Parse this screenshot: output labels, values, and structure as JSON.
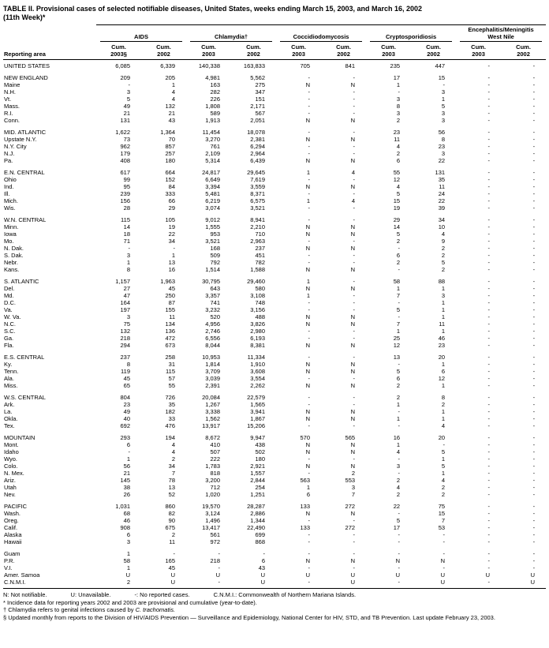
{
  "colors": {
    "background": "#ffffff",
    "text": "#000000",
    "rule": "#000000"
  },
  "title": {
    "line1": "TABLE II. Provisional cases of selected notifiable diseases, United States, weeks ending March 15, 2003, and March 16, 2002",
    "line2": "(11th Week)*"
  },
  "table": {
    "row_header": "Reporting area",
    "column_groups": [
      {
        "label": "AIDS"
      },
      {
        "label": "Chlamydia†"
      },
      {
        "label": "Coccidiodomycosis"
      },
      {
        "label": "Cryptosporidiosis"
      },
      {
        "label": "Encephalitis/Meningitis\nWest Nile"
      }
    ],
    "columns": [
      "Cum.\n2003§",
      "Cum.\n2002",
      "Cum.\n2003",
      "Cum.\n2002",
      "Cum.\n2003",
      "Cum.\n2002",
      "Cum.\n2003",
      "Cum.\n2002",
      "Cum.\n2003",
      "Cum.\n2002"
    ],
    "rows": [
      {
        "area": "UNITED STATES",
        "level": "total",
        "values": [
          "6,085",
          "6,339",
          "140,338",
          "163,833",
          "705",
          "841",
          "235",
          "447",
          "-",
          "-"
        ]
      },
      {
        "area": "NEW ENGLAND",
        "level": "region",
        "section_start": true,
        "values": [
          "209",
          "205",
          "4,981",
          "5,562",
          "-",
          "-",
          "17",
          "15",
          "-",
          "-"
        ]
      },
      {
        "area": "Maine",
        "values": [
          "-",
          "1",
          "163",
          "275",
          "N",
          "N",
          "1",
          "-",
          "-",
          "-"
        ]
      },
      {
        "area": "N.H.",
        "values": [
          "3",
          "4",
          "282",
          "347",
          "-",
          "-",
          "-",
          "3",
          "-",
          "-"
        ]
      },
      {
        "area": "Vt.",
        "values": [
          "5",
          "4",
          "226",
          "151",
          "-",
          "-",
          "3",
          "1",
          "-",
          "-"
        ]
      },
      {
        "area": "Mass.",
        "values": [
          "49",
          "132",
          "1,808",
          "2,171",
          "-",
          "-",
          "8",
          "5",
          "-",
          "-"
        ]
      },
      {
        "area": "R.I.",
        "values": [
          "21",
          "21",
          "589",
          "567",
          "-",
          "-",
          "3",
          "3",
          "-",
          "-"
        ]
      },
      {
        "area": "Conn.",
        "values": [
          "131",
          "43",
          "1,913",
          "2,051",
          "N",
          "N",
          "2",
          "3",
          "-",
          "-"
        ]
      },
      {
        "area": "MID. ATLANTIC",
        "level": "region",
        "section_start": true,
        "values": [
          "1,622",
          "1,364",
          "11,454",
          "18,078",
          "-",
          "-",
          "23",
          "56",
          "-",
          "-"
        ]
      },
      {
        "area": "Upstate N.Y.",
        "values": [
          "73",
          "70",
          "3,270",
          "2,381",
          "N",
          "N",
          "11",
          "8",
          "-",
          "-"
        ]
      },
      {
        "area": "N.Y. City",
        "values": [
          "962",
          "857",
          "761",
          "6,294",
          "-",
          "-",
          "4",
          "23",
          "-",
          "-"
        ]
      },
      {
        "area": "N.J.",
        "values": [
          "179",
          "257",
          "2,109",
          "2,964",
          "-",
          "-",
          "2",
          "3",
          "-",
          "-"
        ]
      },
      {
        "area": "Pa.",
        "values": [
          "408",
          "180",
          "5,314",
          "6,439",
          "N",
          "N",
          "6",
          "22",
          "-",
          "-"
        ]
      },
      {
        "area": "E.N. CENTRAL",
        "level": "region",
        "section_start": true,
        "values": [
          "617",
          "664",
          "24,817",
          "29,645",
          "1",
          "4",
          "55",
          "131",
          "-",
          "-"
        ]
      },
      {
        "area": "Ohio",
        "values": [
          "99",
          "152",
          "6,649",
          "7,619",
          "-",
          "-",
          "12",
          "35",
          "-",
          "-"
        ]
      },
      {
        "area": "Ind.",
        "values": [
          "95",
          "84",
          "3,394",
          "3,559",
          "N",
          "N",
          "4",
          "11",
          "-",
          "-"
        ]
      },
      {
        "area": "Ill.",
        "values": [
          "239",
          "333",
          "5,481",
          "8,371",
          "-",
          "-",
          "5",
          "24",
          "-",
          "-"
        ]
      },
      {
        "area": "Mich.",
        "values": [
          "156",
          "66",
          "6,219",
          "6,575",
          "1",
          "4",
          "15",
          "22",
          "-",
          "-"
        ]
      },
      {
        "area": "Wis.",
        "values": [
          "28",
          "29",
          "3,074",
          "3,521",
          "-",
          "-",
          "19",
          "39",
          "-",
          "-"
        ]
      },
      {
        "area": "W.N. CENTRAL",
        "level": "region",
        "section_start": true,
        "values": [
          "115",
          "105",
          "9,012",
          "8,941",
          "-",
          "-",
          "29",
          "34",
          "-",
          "-"
        ]
      },
      {
        "area": "Minn.",
        "values": [
          "14",
          "19",
          "1,555",
          "2,210",
          "N",
          "N",
          "14",
          "10",
          "-",
          "-"
        ]
      },
      {
        "area": "Iowa",
        "values": [
          "18",
          "22",
          "953",
          "710",
          "N",
          "N",
          "5",
          "4",
          "-",
          "-"
        ]
      },
      {
        "area": "Mo.",
        "values": [
          "71",
          "34",
          "3,521",
          "2,963",
          "-",
          "-",
          "2",
          "9",
          "-",
          "-"
        ]
      },
      {
        "area": "N. Dak.",
        "values": [
          "-",
          "-",
          "168",
          "237",
          "N",
          "N",
          "-",
          "2",
          "-",
          "-"
        ]
      },
      {
        "area": "S. Dak.",
        "values": [
          "3",
          "1",
          "509",
          "451",
          "-",
          "-",
          "6",
          "2",
          "-",
          "-"
        ]
      },
      {
        "area": "Nebr.",
        "values": [
          "1",
          "13",
          "792",
          "782",
          "-",
          "-",
          "2",
          "5",
          "-",
          "-"
        ]
      },
      {
        "area": "Kans.",
        "values": [
          "8",
          "16",
          "1,514",
          "1,588",
          "N",
          "N",
          "-",
          "2",
          "-",
          "-"
        ]
      },
      {
        "area": "S. ATLANTIC",
        "level": "region",
        "section_start": true,
        "values": [
          "1,157",
          "1,963",
          "30,795",
          "29,460",
          "1",
          "-",
          "58",
          "88",
          "-",
          "-"
        ]
      },
      {
        "area": "Del.",
        "values": [
          "27",
          "45",
          "643",
          "580",
          "N",
          "N",
          "1",
          "1",
          "-",
          "-"
        ]
      },
      {
        "area": "Md.",
        "values": [
          "47",
          "250",
          "3,357",
          "3,108",
          "1",
          "-",
          "7",
          "3",
          "-",
          "-"
        ]
      },
      {
        "area": "D.C.",
        "values": [
          "164",
          "87",
          "741",
          "748",
          "-",
          "-",
          "-",
          "1",
          "-",
          "-"
        ]
      },
      {
        "area": "Va.",
        "values": [
          "197",
          "155",
          "3,232",
          "3,156",
          "-",
          "-",
          "5",
          "1",
          "-",
          "-"
        ]
      },
      {
        "area": "W. Va.",
        "values": [
          "3",
          "11",
          "520",
          "488",
          "N",
          "N",
          "-",
          "1",
          "-",
          "-"
        ]
      },
      {
        "area": "N.C.",
        "values": [
          "75",
          "134",
          "4,956",
          "3,826",
          "N",
          "N",
          "7",
          "11",
          "-",
          "-"
        ]
      },
      {
        "area": "S.C.",
        "values": [
          "132",
          "136",
          "2,746",
          "2,980",
          "-",
          "-",
          "1",
          "1",
          "-",
          "-"
        ]
      },
      {
        "area": "Ga.",
        "values": [
          "218",
          "472",
          "6,556",
          "6,193",
          "-",
          "-",
          "25",
          "46",
          "-",
          "-"
        ]
      },
      {
        "area": "Fla.",
        "values": [
          "294",
          "673",
          "8,044",
          "8,381",
          "N",
          "N",
          "12",
          "23",
          "-",
          "-"
        ]
      },
      {
        "area": "E.S. CENTRAL",
        "level": "region",
        "section_start": true,
        "values": [
          "237",
          "258",
          "10,953",
          "11,334",
          "-",
          "-",
          "13",
          "20",
          "-",
          "-"
        ]
      },
      {
        "area": "Ky.",
        "values": [
          "8",
          "31",
          "1,814",
          "1,910",
          "N",
          "N",
          "-",
          "1",
          "-",
          "-"
        ]
      },
      {
        "area": "Tenn.",
        "values": [
          "119",
          "115",
          "3,709",
          "3,608",
          "N",
          "N",
          "5",
          "6",
          "-",
          "-"
        ]
      },
      {
        "area": "Ala.",
        "values": [
          "45",
          "57",
          "3,039",
          "3,554",
          "-",
          "-",
          "6",
          "12",
          "-",
          "-"
        ]
      },
      {
        "area": "Miss.",
        "values": [
          "65",
          "55",
          "2,391",
          "2,262",
          "N",
          "N",
          "2",
          "1",
          "-",
          "-"
        ]
      },
      {
        "area": "W.S. CENTRAL",
        "level": "region",
        "section_start": true,
        "values": [
          "804",
          "726",
          "20,084",
          "22,579",
          "-",
          "-",
          "2",
          "8",
          "-",
          "-"
        ]
      },
      {
        "area": "Ark.",
        "values": [
          "23",
          "35",
          "1,267",
          "1,565",
          "-",
          "-",
          "1",
          "2",
          "-",
          "-"
        ]
      },
      {
        "area": "La.",
        "values": [
          "49",
          "182",
          "3,338",
          "3,941",
          "N",
          "N",
          "-",
          "1",
          "-",
          "-"
        ]
      },
      {
        "area": "Okla.",
        "values": [
          "40",
          "33",
          "1,562",
          "1,867",
          "N",
          "N",
          "1",
          "1",
          "-",
          "-"
        ]
      },
      {
        "area": "Tex.",
        "values": [
          "692",
          "476",
          "13,917",
          "15,206",
          "-",
          "-",
          "-",
          "4",
          "-",
          "-"
        ]
      },
      {
        "area": "MOUNTAIN",
        "level": "region",
        "section_start": true,
        "values": [
          "293",
          "194",
          "8,672",
          "9,947",
          "570",
          "565",
          "16",
          "20",
          "-",
          "-"
        ]
      },
      {
        "area": "Mont.",
        "values": [
          "6",
          "4",
          "410",
          "438",
          "N",
          "N",
          "1",
          "-",
          "-",
          "-"
        ]
      },
      {
        "area": "Idaho",
        "values": [
          "-",
          "4",
          "507",
          "502",
          "N",
          "N",
          "4",
          "5",
          "-",
          "-"
        ]
      },
      {
        "area": "Wyo.",
        "values": [
          "1",
          "2",
          "222",
          "180",
          "-",
          "-",
          "-",
          "1",
          "-",
          "-"
        ]
      },
      {
        "area": "Colo.",
        "values": [
          "56",
          "34",
          "1,783",
          "2,921",
          "N",
          "N",
          "3",
          "5",
          "-",
          "-"
        ]
      },
      {
        "area": "N. Mex.",
        "values": [
          "21",
          "7",
          "818",
          "1,557",
          "-",
          "2",
          "-",
          "1",
          "-",
          "-"
        ]
      },
      {
        "area": "Ariz.",
        "values": [
          "145",
          "78",
          "3,200",
          "2,844",
          "563",
          "553",
          "2",
          "4",
          "-",
          "-"
        ]
      },
      {
        "area": "Utah",
        "values": [
          "38",
          "13",
          "712",
          "254",
          "1",
          "3",
          "4",
          "2",
          "-",
          "-"
        ]
      },
      {
        "area": "Nev.",
        "values": [
          "26",
          "52",
          "1,020",
          "1,251",
          "6",
          "7",
          "2",
          "2",
          "-",
          "-"
        ]
      },
      {
        "area": "PACIFIC",
        "level": "region",
        "section_start": true,
        "values": [
          "1,031",
          "860",
          "19,570",
          "28,287",
          "133",
          "272",
          "22",
          "75",
          "-",
          "-"
        ]
      },
      {
        "area": "Wash.",
        "values": [
          "68",
          "82",
          "3,124",
          "2,886",
          "N",
          "N",
          "-",
          "15",
          "-",
          "-"
        ]
      },
      {
        "area": "Oreg.",
        "values": [
          "46",
          "90",
          "1,496",
          "1,344",
          "-",
          "-",
          "5",
          "7",
          "-",
          "-"
        ]
      },
      {
        "area": "Calif.",
        "values": [
          "908",
          "675",
          "13,417",
          "22,490",
          "133",
          "272",
          "17",
          "53",
          "-",
          "-"
        ]
      },
      {
        "area": "Alaska",
        "values": [
          "6",
          "2",
          "561",
          "699",
          "-",
          "-",
          "-",
          "-",
          "-",
          "-"
        ]
      },
      {
        "area": "Hawaii",
        "values": [
          "3",
          "11",
          "972",
          "868",
          "-",
          "-",
          "-",
          "-",
          "-",
          "-"
        ]
      },
      {
        "area": "Guam",
        "section_start": true,
        "values": [
          "1",
          "-",
          "-",
          "-",
          "-",
          "-",
          "-",
          "-",
          "-",
          "-"
        ]
      },
      {
        "area": "P.R.",
        "values": [
          "58",
          "165",
          "218",
          "6",
          "N",
          "N",
          "N",
          "N",
          "-",
          "-"
        ]
      },
      {
        "area": "V.I.",
        "values": [
          "1",
          "45",
          "-",
          "43",
          "-",
          "-",
          "-",
          "-",
          "-",
          "-"
        ]
      },
      {
        "area": "Amer. Samoa",
        "values": [
          "U",
          "U",
          "U",
          "U",
          "U",
          "U",
          "U",
          "U",
          "U",
          "U"
        ]
      },
      {
        "area": "C.N.M.I.",
        "values": [
          "2",
          "U",
          "-",
          "U",
          "-",
          "U",
          "-",
          "U",
          "-",
          "U"
        ]
      }
    ]
  },
  "footnotes": {
    "legend": [
      "N: Not notifiable.",
      "U: Unavailable.",
      "-: No reported cases.",
      "C.N.M.I.: Commonwealth of Northern Mariana Islands."
    ],
    "incidence": "* Incidence data for reporting years 2002 and 2003 are provisional and cumulative (year-to-date).",
    "chlamydia_prefix": "† Chlamydia refers to genital infections caused by ",
    "chlamydia_italic": "C. trachomatis.",
    "aids_update": "§ Updated monthly from reports to the Division of HIV/AIDS Prevention — Surveillance and Epidemiology, National Center for HIV, STD, and TB Prevention. Last update February 23, 2003."
  }
}
